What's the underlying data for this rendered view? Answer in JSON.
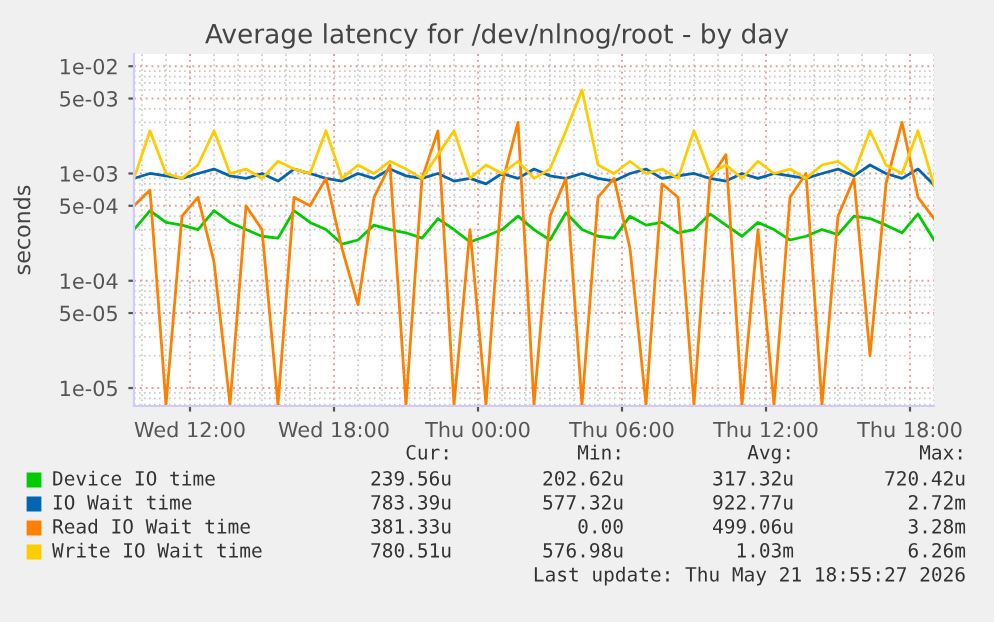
{
  "chart_data": {
    "type": "line",
    "title": "Average latency for /dev/nlnog/root - by day",
    "ylabel": "seconds",
    "x": [
      "2026-05-20T09:40",
      "2026-05-20T10:20",
      "2026-05-20T11:00",
      "2026-05-20T11:40",
      "2026-05-20T12:20",
      "2026-05-20T13:00",
      "2026-05-20T13:40",
      "2026-05-20T14:20",
      "2026-05-20T15:00",
      "2026-05-20T15:40",
      "2026-05-20T16:20",
      "2026-05-20T17:00",
      "2026-05-20T17:40",
      "2026-05-20T18:20",
      "2026-05-20T19:00",
      "2026-05-20T19:40",
      "2026-05-20T20:20",
      "2026-05-20T21:00",
      "2026-05-20T21:40",
      "2026-05-20T22:20",
      "2026-05-20T23:00",
      "2026-05-20T23:40",
      "2026-05-21T00:20",
      "2026-05-21T01:00",
      "2026-05-21T01:40",
      "2026-05-21T02:20",
      "2026-05-21T03:00",
      "2026-05-21T03:40",
      "2026-05-21T04:20",
      "2026-05-21T05:00",
      "2026-05-21T05:40",
      "2026-05-21T06:20",
      "2026-05-21T07:00",
      "2026-05-21T07:40",
      "2026-05-21T08:20",
      "2026-05-21T09:00",
      "2026-05-21T09:40",
      "2026-05-21T10:20",
      "2026-05-21T11:00",
      "2026-05-21T11:40",
      "2026-05-21T12:20",
      "2026-05-21T13:00",
      "2026-05-21T13:40",
      "2026-05-21T14:20",
      "2026-05-21T15:00",
      "2026-05-21T15:40",
      "2026-05-21T16:20",
      "2026-05-21T17:00",
      "2026-05-21T17:40",
      "2026-05-21T18:20",
      "2026-05-21T19:00"
    ],
    "series": [
      {
        "name": "Device IO time",
        "color": "#00cc00",
        "values": [
          0.0003,
          0.00045,
          0.00035,
          0.00033,
          0.0003,
          0.00045,
          0.00035,
          0.0003,
          0.00026,
          0.00025,
          0.00045,
          0.00035,
          0.0003,
          0.00022,
          0.00024,
          0.00033,
          0.0003,
          0.00028,
          0.00025,
          0.00038,
          0.0003,
          0.00023,
          0.00026,
          0.0003,
          0.0004,
          0.0003,
          0.00024,
          0.00043,
          0.0003,
          0.00026,
          0.00025,
          0.0004,
          0.00033,
          0.00035,
          0.00028,
          0.0003,
          0.00042,
          0.00033,
          0.00026,
          0.00035,
          0.0003,
          0.00024,
          0.00026,
          0.0003,
          0.00027,
          0.0004,
          0.00038,
          0.00033,
          0.00028,
          0.00042,
          0.00024
        ]
      },
      {
        "name": "IO Wait time",
        "color": "#0066b3",
        "values": [
          0.0009,
          0.001,
          0.00095,
          0.0009,
          0.001,
          0.0011,
          0.00095,
          0.0009,
          0.001,
          0.00085,
          0.0011,
          0.001,
          0.0009,
          0.00085,
          0.001,
          0.0009,
          0.0011,
          0.00095,
          0.0009,
          0.001,
          0.00085,
          0.0009,
          0.0008,
          0.001,
          0.0009,
          0.0011,
          0.00095,
          0.0009,
          0.001,
          0.0009,
          0.00085,
          0.001,
          0.0011,
          0.0009,
          0.00095,
          0.001,
          0.0009,
          0.00085,
          0.001,
          0.0009,
          0.001,
          0.00095,
          0.0009,
          0.001,
          0.0011,
          0.00095,
          0.0012,
          0.001,
          0.0009,
          0.0011,
          0.00078
        ]
      },
      {
        "name": "Read IO Wait time",
        "color": "#ff8000",
        "values": [
          0.0005,
          0.0007,
          7e-06,
          0.0004,
          0.0006,
          0.00015,
          7e-06,
          0.0005,
          0.0003,
          7e-06,
          0.0006,
          0.0005,
          0.0009,
          0.0002,
          6e-05,
          0.0006,
          0.0012,
          7e-06,
          0.0009,
          0.0025,
          7e-06,
          0.0003,
          7e-06,
          0.0008,
          0.003,
          7e-06,
          0.0004,
          0.0009,
          7e-06,
          0.0006,
          0.0009,
          0.0002,
          7e-06,
          0.0008,
          0.0006,
          7e-06,
          0.0009,
          0.0015,
          7e-06,
          0.0003,
          7e-06,
          0.0006,
          0.001,
          7e-06,
          0.0004,
          0.0009,
          2e-05,
          0.0008,
          0.003,
          0.0006,
          0.00038
        ]
      },
      {
        "name": "Write IO Wait time",
        "color": "#ffcc00",
        "values": [
          0.0009,
          0.0025,
          0.001,
          0.0009,
          0.0012,
          0.0025,
          0.001,
          0.0011,
          0.0009,
          0.0013,
          0.0011,
          0.001,
          0.0025,
          0.0009,
          0.0012,
          0.001,
          0.0013,
          0.0011,
          0.0009,
          0.0015,
          0.0025,
          0.0009,
          0.0012,
          0.001,
          0.0013,
          0.0009,
          0.0011,
          0.0025,
          0.006,
          0.0012,
          0.001,
          0.0013,
          0.001,
          0.0011,
          0.0009,
          0.0025,
          0.001,
          0.0012,
          0.0009,
          0.0013,
          0.001,
          0.0011,
          0.0009,
          0.0012,
          0.0013,
          0.001,
          0.0025,
          0.0012,
          0.001,
          0.0025,
          0.00078
        ]
      }
    ],
    "xlim": [
      "2026-05-20T09:40",
      "2026-05-21T19:00"
    ],
    "xticks": [
      {
        "value": "2026-05-20T12:00",
        "label": "Wed 12:00"
      },
      {
        "value": "2026-05-20T18:00",
        "label": "Wed 18:00"
      },
      {
        "value": "2026-05-21T00:00",
        "label": "Thu 00:00"
      },
      {
        "value": "2026-05-21T06:00",
        "label": "Thu 06:00"
      },
      {
        "value": "2026-05-21T12:00",
        "label": "Thu 12:00"
      },
      {
        "value": "2026-05-21T18:00",
        "label": "Thu 18:00"
      }
    ],
    "ylim": [
      6.8e-06,
      0.013
    ],
    "log": true,
    "yticks": [
      {
        "value": 1e-05,
        "label": "1e-05"
      },
      {
        "value": 5e-05,
        "label": "5e-05"
      },
      {
        "value": 0.0001,
        "label": "1e-04"
      },
      {
        "value": 0.0005,
        "label": "5e-04"
      },
      {
        "value": 0.001,
        "label": "1e-03"
      },
      {
        "value": 0.005,
        "label": "5e-03"
      },
      {
        "value": 0.01,
        "label": "1e-02"
      }
    ],
    "grid": true,
    "legend": "bottom",
    "annotations": [
      "Cur:",
      "Min:",
      "Avg:",
      "Max:",
      "239.56u",
      "202.62u",
      "317.32u",
      "720.42u",
      "783.39u",
      "577.32u",
      "922.77u",
      "2.72m",
      "381.33u",
      "0.00",
      "499.06u",
      "3.28m",
      "780.51u",
      "576.98u",
      "1.03m",
      "6.26m",
      "Last update: Thu May 21 18:55:27 2026"
    ]
  }
}
